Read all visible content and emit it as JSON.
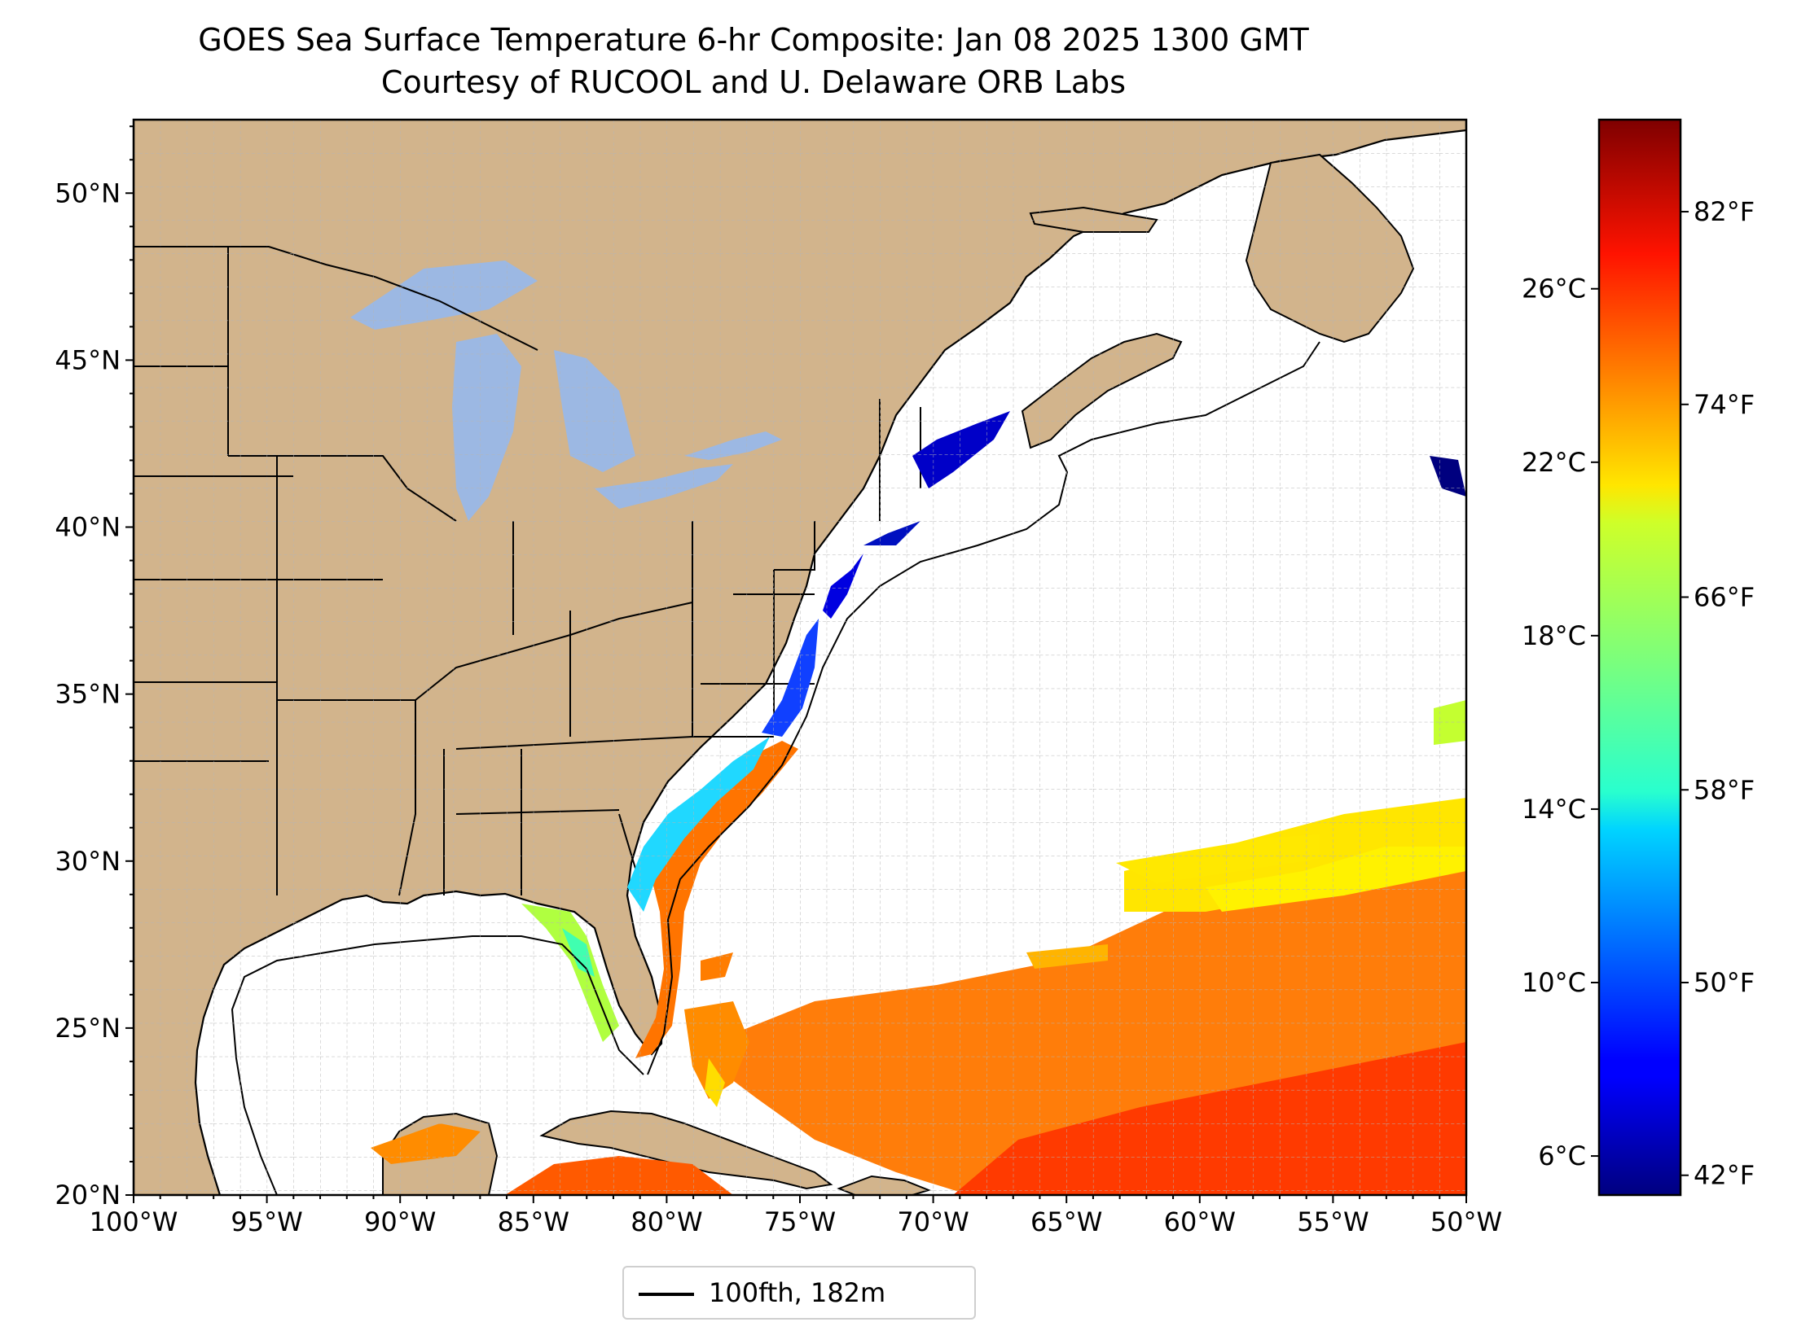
{
  "title": {
    "line1": "GOES Sea Surface Temperature 6-hr Composite: Jan 08 2025 1300 GMT",
    "line2": "Courtesy of RUCOOL and U. Delaware ORB Labs"
  },
  "map": {
    "lon_range": [
      -100,
      -50
    ],
    "lat_range": [
      20,
      52.2
    ],
    "land_color": "#d2b48c",
    "ocean_color": "#ffffff",
    "lake_color": "#9cb8e3",
    "grid": "dashed, 1 degree",
    "lon_ticks": [
      "100°W",
      "95°W",
      "90°W",
      "85°W",
      "80°W",
      "75°W",
      "70°W",
      "65°W",
      "60°W",
      "55°W",
      "50°W"
    ],
    "lat_ticks": [
      "20°N",
      "25°N",
      "30°N",
      "35°N",
      "40°N",
      "45°N",
      "50°N"
    ]
  },
  "colorbar": {
    "colormap": "jet",
    "range_c": [
      5.1,
      29.9
    ],
    "celsius_ticks": [
      "6°C",
      "10°C",
      "14°C",
      "18°C",
      "22°C",
      "26°C"
    ],
    "fahrenheit_ticks": [
      "42°F",
      "50°F",
      "58°F",
      "66°F",
      "74°F",
      "82°F"
    ]
  },
  "legend": {
    "label": "100fth, 182m",
    "line_color": "#000000"
  }
}
